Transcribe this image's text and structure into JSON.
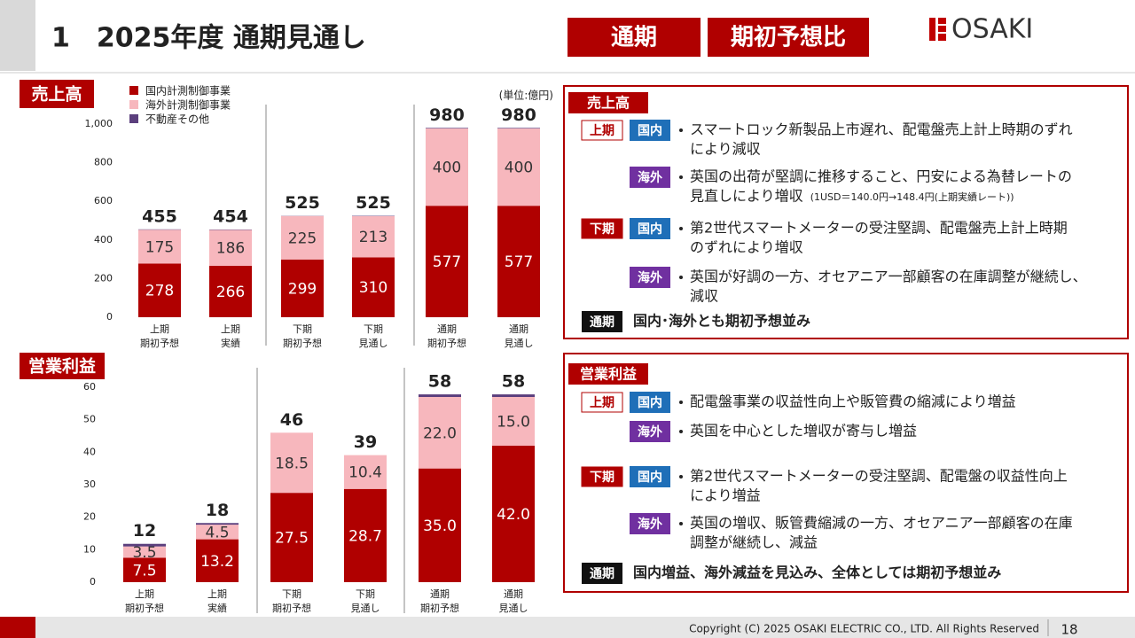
{
  "header": {
    "title": "1　2025年度 通期見通し",
    "tags": [
      "通期",
      "期初予想比"
    ],
    "logo": "OSAKI"
  },
  "unit": "(単位:億円)",
  "chart_labels": [
    "売上高",
    "営業利益"
  ],
  "chart_data": [
    {
      "type": "bar",
      "stacked": true,
      "categories": [
        "上期\n期初予想",
        "上期\n実績",
        "下期\n期初予想",
        "下期\n見通し",
        "通期\n期初予想",
        "通期\n見通し"
      ],
      "series": [
        {
          "name": "国内計測制御事業",
          "color": "#b00000",
          "values": [
            278,
            266,
            299,
            310,
            577,
            577
          ]
        },
        {
          "name": "海外計測制御事業",
          "color": "#f7b7bd",
          "values": [
            175,
            186,
            225,
            213,
            400,
            400
          ]
        },
        {
          "name": "不動産その他",
          "color": "#5b3f7d",
          "values": [
            2,
            2,
            1,
            2,
            3,
            3
          ]
        }
      ],
      "totals": [
        455,
        454,
        525,
        525,
        980,
        980
      ],
      "ylim": [
        0,
        1000
      ],
      "yticks": [
        0,
        200,
        400,
        600,
        800,
        {
          "value": 1000,
          "label": "1,000"
        }
      ]
    },
    {
      "type": "bar",
      "stacked": true,
      "categories": [
        "上期\n期初予想",
        "上期\n実績",
        "下期\n期初予想",
        "下期\n見通し",
        "通期\n期初予想",
        "通期\n見通し"
      ],
      "series": [
        {
          "name": "国内計測制御事業",
          "color": "#b00000",
          "values": [
            7.5,
            13.2,
            27.5,
            28.7,
            35,
            42
          ],
          "value_labels": [
            "7.5",
            "13.2",
            "27.5",
            "28.7",
            "35.0",
            "42.0"
          ]
        },
        {
          "name": "海外計測制御事業",
          "color": "#f7b7bd",
          "values": [
            3.5,
            4.5,
            18.5,
            10.4,
            22,
            15
          ],
          "value_labels": [
            "3.5",
            "4.5",
            "18.5",
            "10.4",
            "22.0",
            "15.0"
          ]
        },
        {
          "name": "不動産その他",
          "color": "#5b3f7d",
          "values": [
            0.8,
            0.5,
            0,
            0,
            0.8,
            0.8
          ]
        }
      ],
      "totals": [
        12,
        18,
        46,
        39,
        58,
        58
      ],
      "ylim": [
        0,
        60
      ],
      "yticks": [
        0,
        10,
        20,
        30,
        40,
        50,
        60
      ]
    }
  ],
  "panels": [
    {
      "title": "売上高",
      "items": [
        {
          "period": "上期",
          "region": "国内",
          "lines": [
            "スマートロック新製品上市遅れ、配電盤売上計上時期のずれ",
            "により減収"
          ]
        },
        {
          "region": "海外",
          "lines": [
            "英国の出荷が堅調に推移すること、円安による為替レートの",
            "見直しにより増収"
          ],
          "note": "(1USD＝140.0円→148.4円(上期実績レート))"
        },
        {
          "period": "下期",
          "region": "国内",
          "lines": [
            "第2世代スマートメーターの受注堅調、配電盤売上計上時期",
            "のずれにより増収"
          ]
        },
        {
          "region": "海外",
          "lines": [
            "英国が好調の一方、オセアニア一部顧客の在庫調整が継続し、",
            "減収"
          ]
        }
      ],
      "summary": {
        "tag": "通期",
        "text": "国内･海外とも期初予想並み"
      }
    },
    {
      "title": "営業利益",
      "items": [
        {
          "period": "上期",
          "region": "国内",
          "lines": [
            "配電盤事業の収益性向上や販管費の縮減により増益"
          ]
        },
        {
          "region": "海外",
          "lines": [
            "英国を中心とした増収が寄与し増益"
          ]
        },
        {
          "period": "下期",
          "region": "国内",
          "lines": [
            "第2世代スマートメーターの受注堅調、配電盤の収益性向上",
            "により増益"
          ]
        },
        {
          "region": "海外",
          "lines": [
            "英国の増収、販管費縮減の一方、オセアニア一部顧客の在庫",
            "調整が継続し、減益"
          ]
        }
      ],
      "summary": {
        "tag": "通期",
        "text": "国内増益、海外減益を見込み、全体としては期初予想並み"
      }
    }
  ],
  "footer": {
    "copyright": "Copyright (C) 2025 OSAKI ELECTRIC CO., LTD. All Rights Reserved",
    "page": "18"
  }
}
